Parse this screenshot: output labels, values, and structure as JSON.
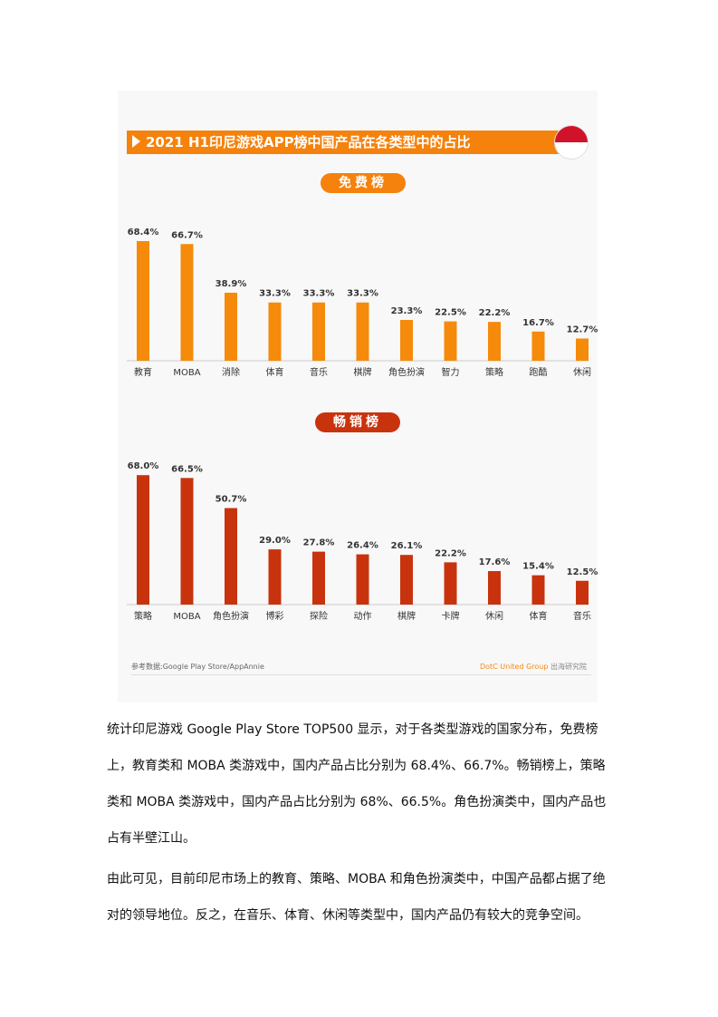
{
  "figure": {
    "title": "2021 H1印尼游戏APP榜中国产品在各类型中的占比",
    "source": "参考数据:Google Play Store/AppAnnie",
    "brand": "DotC United Group",
    "brand_suffix": "出海研究院",
    "colors": {
      "title_bar": "#f5820c",
      "free_bars": "#f58a0b",
      "grossing_bars": "#c8330e"
    }
  },
  "chart_data": [
    {
      "type": "bar",
      "title": "免费榜",
      "categories": [
        "教育",
        "MOBA",
        "消除",
        "体育",
        "音乐",
        "棋牌",
        "角色扮演",
        "智力",
        "策略",
        "跑酷",
        "休闲"
      ],
      "values": [
        68.4,
        66.7,
        38.9,
        33.3,
        33.3,
        33.3,
        23.3,
        22.5,
        22.2,
        16.7,
        12.7
      ],
      "labels": [
        "68.4%",
        "66.7%",
        "38.9%",
        "33.3%",
        "33.3%",
        "33.3%",
        "23.3%",
        "22.5%",
        "22.2%",
        "16.7%",
        "12.7%"
      ],
      "unit": "%",
      "ylim": [
        0,
        70
      ],
      "grid": false
    },
    {
      "type": "bar",
      "title": "畅销榜",
      "categories": [
        "策略",
        "MOBA",
        "角色扮演",
        "博彩",
        "探险",
        "动作",
        "棋牌",
        "卡牌",
        "休闲",
        "体育",
        "音乐"
      ],
      "values": [
        68.0,
        66.5,
        50.7,
        29.0,
        27.8,
        26.4,
        26.1,
        22.2,
        17.6,
        15.4,
        12.5
      ],
      "labels": [
        "68.0%",
        "66.5%",
        "50.7%",
        "29.0%",
        "27.8%",
        "26.4%",
        "26.1%",
        "22.2%",
        "17.6%",
        "15.4%",
        "12.5%"
      ],
      "unit": "%",
      "ylim": [
        0,
        70
      ],
      "grid": false
    }
  ],
  "paragraphs": [
    "统计印尼游戏 Google Play Store TOP500 显示，对于各类型游戏的国家分布，免费榜上，教育类和 MOBA 类游戏中，国内产品占比分别为 68.4%、66.7%。畅销榜上，策略类和 MOBA 类游戏中，国内产品占比分别为 68%、66.5%。角色扮演类中，国内产品也占有半壁江山。",
    "由此可见，目前印尼市场上的教育、策略、MOBA 和角色扮演类中，中国产品都占据了绝对的领导地位。反之，在音乐、体育、休闲等类型中，国内产品仍有较大的竞争空间。"
  ]
}
